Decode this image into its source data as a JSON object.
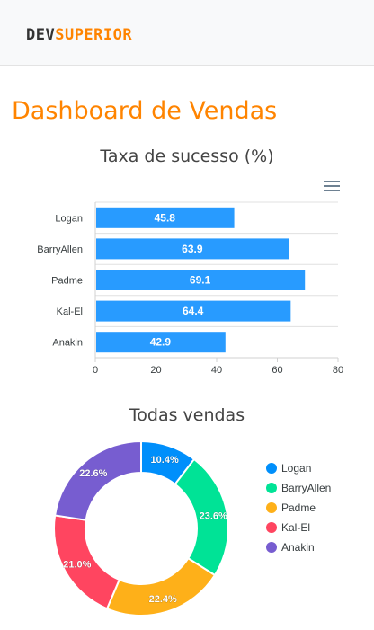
{
  "brand": {
    "part1": "DEV",
    "part2": "SUPERIOR"
  },
  "page_title": "Dashboard de Vendas",
  "colors": {
    "accent": "#ff8400",
    "bar": "#289bff"
  },
  "icons": {
    "menu": "hamburger-menu-icon"
  },
  "chart_data": [
    {
      "type": "bar",
      "orientation": "horizontal",
      "title": "Taxa de sucesso (%)",
      "categories": [
        "Logan",
        "BarryAllen",
        "Padme",
        "Kal-El",
        "Anakin"
      ],
      "values": [
        45.8,
        63.9,
        69.1,
        64.4,
        42.9
      ],
      "xlim": [
        0,
        80
      ],
      "xticks": [
        "0",
        "20",
        "40",
        "60",
        "80"
      ],
      "grid": true
    },
    {
      "type": "pie",
      "variant": "donut",
      "title": "Todas vendas",
      "labels": [
        "Logan",
        "BarryAllen",
        "Padme",
        "Kal-El",
        "Anakin"
      ],
      "values": [
        10.4,
        23.6,
        22.4,
        21.0,
        22.6
      ],
      "value_labels": [
        "10.4%",
        "23.6%",
        "22.4%",
        "21.0%",
        "22.6%"
      ],
      "colors": [
        "#008ffb",
        "#00e396",
        "#feb019",
        "#ff4560",
        "#775dd0"
      ],
      "legend": "right"
    }
  ]
}
